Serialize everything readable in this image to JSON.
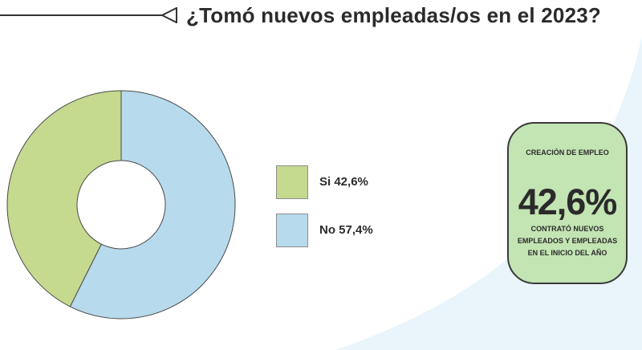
{
  "title": "¿Tomó nuevos empleadas/os en el 2023?",
  "colors": {
    "si": "#c5d98f",
    "no": "#b7dbec",
    "callout_bg": "#c3e4b3",
    "wave": "#e9f5fb"
  },
  "header_icon": "arrow-left-outline-icon",
  "chart_data": {
    "type": "pie",
    "donut": true,
    "categories": [
      "Si",
      "No"
    ],
    "values": [
      42.6,
      57.4
    ],
    "unit": "%",
    "legend_position": "right"
  },
  "legend": {
    "items": [
      {
        "label": "Si 42,6%",
        "color": "#c5d98f"
      },
      {
        "label": "No 57,4%",
        "color": "#b7dbec"
      }
    ]
  },
  "callout": {
    "heading": "CREACIÓN DE EMPLEO",
    "value": "42,6%",
    "caption": "CONTRATÓ NUEVOS EMPLEADOS Y EMPLEADAS EN EL INICIO DEL AÑO"
  }
}
